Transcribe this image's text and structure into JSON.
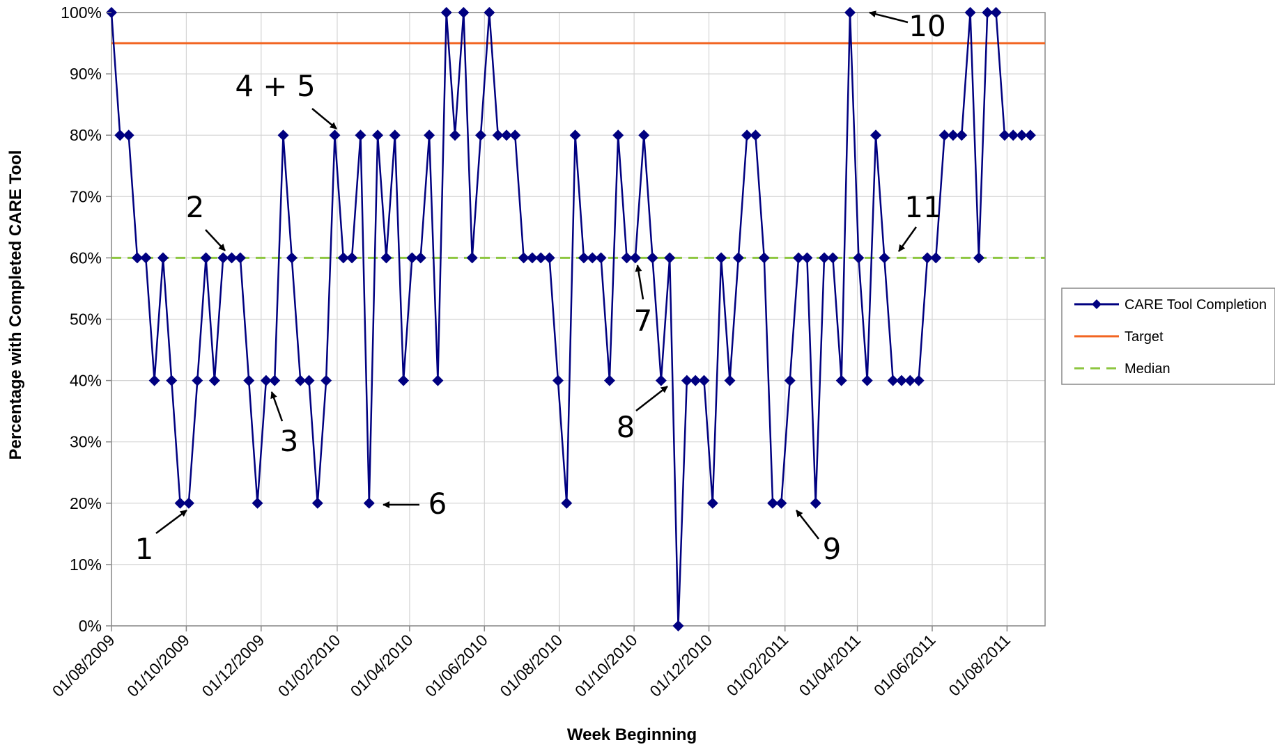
{
  "chart_data": {
    "type": "line",
    "title": "",
    "xlabel": "Week Beginning",
    "ylabel": "Percentage with Completed CARE Tool",
    "ylim": [
      0,
      100
    ],
    "y_ticks": [
      "0%",
      "10%",
      "20%",
      "30%",
      "40%",
      "50%",
      "60%",
      "70%",
      "80%",
      "90%",
      "100%"
    ],
    "x_ticks": [
      {
        "label": "01/08/2009",
        "date": "2009-08-01"
      },
      {
        "label": "01/10/2009",
        "date": "2009-10-01"
      },
      {
        "label": "01/12/2009",
        "date": "2009-12-01"
      },
      {
        "label": "01/02/2010",
        "date": "2010-02-01"
      },
      {
        "label": "01/04/2010",
        "date": "2010-04-01"
      },
      {
        "label": "01/06/2010",
        "date": "2010-06-01"
      },
      {
        "label": "01/08/2010",
        "date": "2010-08-01"
      },
      {
        "label": "01/10/2010",
        "date": "2010-10-01"
      },
      {
        "label": "01/12/2010",
        "date": "2010-12-01"
      },
      {
        "label": "01/02/2011",
        "date": "2011-02-01"
      },
      {
        "label": "01/04/2011",
        "date": "2011-04-01"
      },
      {
        "label": "01/06/2011",
        "date": "2011-06-01"
      },
      {
        "label": "01/08/2011",
        "date": "2011-08-01"
      }
    ],
    "grid": true,
    "legend_position": "right",
    "series": [
      {
        "name": "CARE Tool Completion",
        "color": "#000080",
        "marker": "diamond",
        "x_start": "2009-08-01",
        "x_step_days": 7,
        "values": [
          100,
          80,
          80,
          60,
          60,
          40,
          60,
          40,
          20,
          20,
          40,
          60,
          40,
          60,
          60,
          60,
          40,
          20,
          40,
          40,
          80,
          60,
          40,
          40,
          20,
          40,
          80,
          60,
          60,
          80,
          20,
          80,
          60,
          80,
          40,
          60,
          60,
          80,
          40,
          100,
          80,
          100,
          60,
          80,
          100,
          80,
          80,
          80,
          60,
          60,
          60,
          60,
          40,
          20,
          80,
          60,
          60,
          60,
          40,
          80,
          60,
          60,
          80,
          60,
          40,
          60,
          0,
          40,
          40,
          40,
          20,
          60,
          40,
          60,
          80,
          80,
          60,
          20,
          20,
          40,
          60,
          60,
          20,
          60,
          60,
          40,
          100,
          60,
          40,
          80,
          60,
          40,
          40,
          40,
          40,
          60,
          60,
          80,
          80,
          80,
          100,
          60,
          100,
          100,
          80,
          80,
          80,
          80
        ]
      },
      {
        "name": "Target",
        "color": "#f26522",
        "style": "solid",
        "value": 95
      },
      {
        "name": "Median",
        "color": "#8dc63f",
        "style": "dashed",
        "value": 60
      }
    ],
    "annotations": [
      {
        "label": "1",
        "point_index": 9
      },
      {
        "label": "2",
        "point_index": 13
      },
      {
        "label": "3",
        "point_index": 18
      },
      {
        "label": "4 + 5",
        "point_index": 26
      },
      {
        "label": "6",
        "point_index": 30
      },
      {
        "label": "7",
        "point_index": 61
      },
      {
        "label": "8",
        "point_index": 64
      },
      {
        "label": "9",
        "point_index": 78
      },
      {
        "label": "10",
        "point_index": 86
      },
      {
        "label": "11",
        "point_index": 91
      }
    ]
  }
}
